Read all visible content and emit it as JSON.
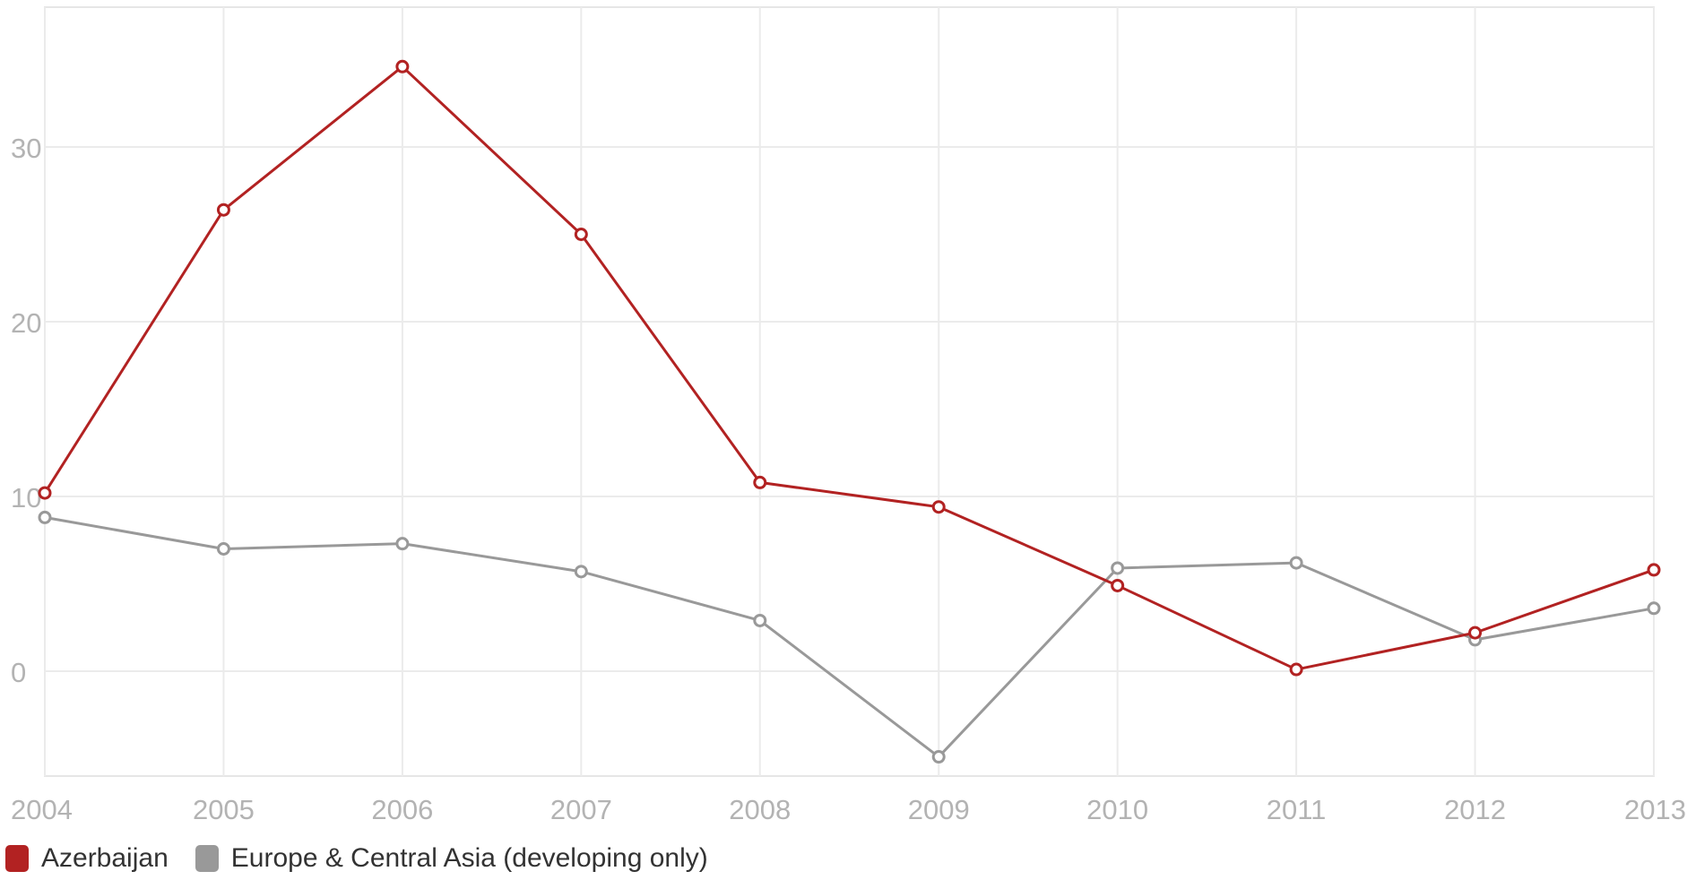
{
  "chart_data": {
    "type": "line",
    "title": "",
    "xlabel": "",
    "ylabel": "",
    "x": [
      "2004",
      "2005",
      "2006",
      "2007",
      "2008",
      "2009",
      "2010",
      "2011",
      "2012",
      "2013"
    ],
    "ylim": [
      -6,
      38
    ],
    "yticks": [
      "0",
      "10",
      "20",
      "30"
    ],
    "grid": true,
    "legend_position": "bottom-left",
    "series": [
      {
        "name": "Azerbaijan",
        "color": "#b22222",
        "values": [
          10.2,
          26.4,
          34.6,
          25.0,
          10.8,
          9.4,
          4.9,
          0.1,
          2.2,
          5.8
        ]
      },
      {
        "name": "Europe & Central Asia (developing only)",
        "color": "#999999",
        "values": [
          8.8,
          7.0,
          7.3,
          5.7,
          2.9,
          -4.9,
          5.9,
          6.2,
          1.8,
          3.6
        ]
      }
    ]
  }
}
